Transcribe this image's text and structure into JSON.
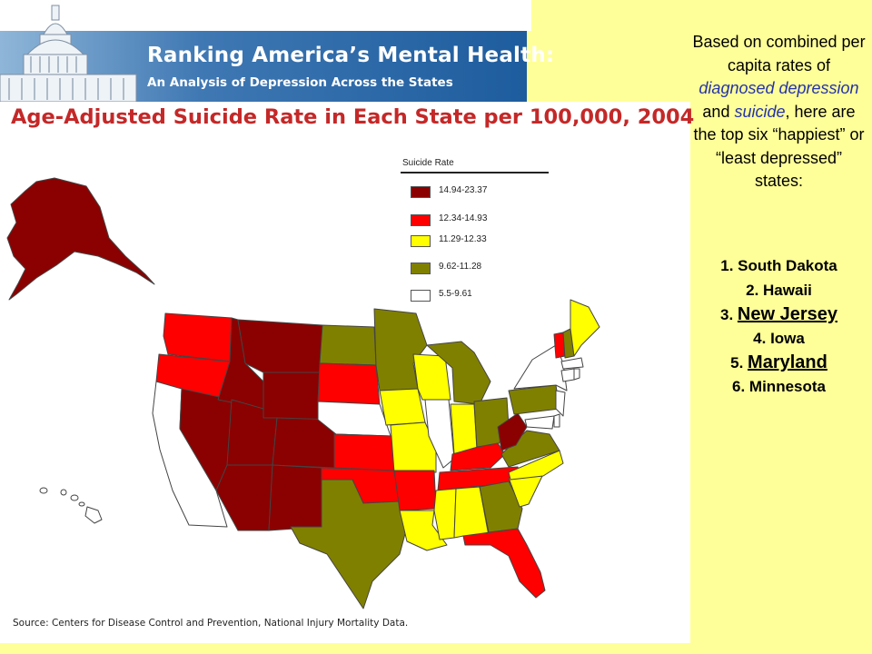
{
  "header": {
    "title": "Ranking America’s Mental Health:",
    "subtitle": "An Analysis of Depression Across the States"
  },
  "map": {
    "title": "Age-Adjusted Suicide Rate in Each State per 100,000, 2004",
    "source": "Source: Centers for Disease Control and Prevention, National Injury Mortality Data.",
    "legend_title": "Suicide Rate",
    "legend": [
      {
        "label": "14.94-23.37",
        "color": "#8b0000"
      },
      {
        "label": "12.34-14.93",
        "color": "#ff0000"
      },
      {
        "label": "11.29-12.33",
        "color": "#ffff00"
      },
      {
        "label": "9.62-11.28",
        "color": "#808000"
      },
      {
        "label": "5.5-9.61",
        "color": "#ffffff"
      }
    ]
  },
  "sidebar": {
    "intro_pre": "Based on combined per capita rates of",
    "term1": "diagnosed depression",
    "and": "and",
    "term2": "suicide",
    "intro_post": ", here are the top six “happiest” or “least depressed” states:",
    "ranks": [
      {
        "num": "1.",
        "name": "South Dakota"
      },
      {
        "num": "2.",
        "name": "Hawaii"
      },
      {
        "num": "3.",
        "name": "New Jersey"
      },
      {
        "num": "4.",
        "name": "Iowa"
      },
      {
        "num": "5.",
        "name": "Maryland"
      },
      {
        "num": "6.",
        "name": "Minnesota"
      }
    ]
  }
}
